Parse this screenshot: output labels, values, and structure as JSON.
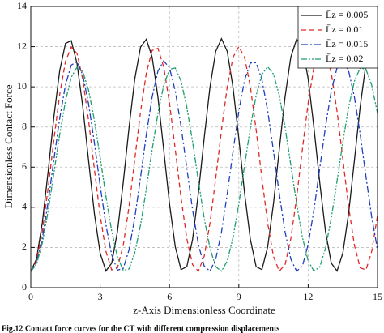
{
  "chart_data": {
    "type": "line",
    "x_label": "z-Axis Dimensionless Coordinate",
    "y_label": "Dimensionless Contact Force",
    "caption": "Fig.12  Contact force curves for the CT with different compression displacements",
    "xlim": [
      0,
      15
    ],
    "ylim": [
      0,
      14
    ],
    "xticks": [
      0,
      3,
      6,
      9,
      12,
      15
    ],
    "yticks": [
      0,
      2,
      4,
      6,
      8,
      10,
      12,
      14
    ],
    "grid": true,
    "legend": "top-right",
    "x": [
      0,
      0.25,
      0.5,
      0.75,
      1,
      1.25,
      1.5,
      1.75,
      2,
      2.25,
      2.5,
      2.75,
      3,
      3.25,
      3.5,
      3.75,
      4,
      4.25,
      4.5,
      4.75,
      5,
      5.25,
      5.5,
      5.75,
      6,
      6.25,
      6.5,
      6.75,
      7,
      7.25,
      7.5,
      7.75,
      8,
      8.25,
      8.5,
      8.75,
      9,
      9.25,
      9.5,
      9.75,
      10,
      10.25,
      10.5,
      10.75,
      11,
      11.25,
      11.5,
      11.75,
      12,
      12.25,
      12.5,
      12.75,
      13,
      13.25,
      13.5,
      13.75,
      14,
      14.25,
      14.5,
      14.75,
      15
    ],
    "series": [
      {
        "name": "L̄z = 0.005",
        "color": "#1a1a1a",
        "dash": "none",
        "values": [
          0.8,
          1.44,
          3.24,
          5.77,
          8.5,
          10.8,
          12.16,
          12.3,
          11.16,
          9.01,
          6.33,
          3.7,
          1.72,
          0.83,
          1.22,
          2.8,
          5.24,
          7.96,
          10.4,
          11.98,
          12.37,
          11.48,
          9.5,
          6.87,
          4.19,
          2.04,
          0.9,
          1.04,
          2.4,
          4.7,
          7.43,
          9.96,
          11.76,
          12.4,
          11.76,
          9.96,
          7.43,
          4.7,
          2.4,
          1.04,
          0.9,
          2.04,
          4.19,
          6.87,
          9.5,
          11.48,
          12.37,
          11.98,
          10.4,
          7.96,
          5.24,
          2.8,
          1.22,
          0.83,
          1.72,
          3.7,
          6.33,
          9.01,
          11.16,
          12.3,
          12.16
        ]
      },
      {
        "name": "L̄z = 0.01",
        "color": "#e02828",
        "dash": "6,4",
        "values": [
          0.8,
          1.33,
          2.8,
          4.95,
          7.37,
          9.61,
          11.25,
          11.98,
          11.66,
          10.36,
          8.32,
          5.91,
          3.6,
          1.81,
          0.88,
          0.99,
          2.11,
          4.03,
          6.4,
          8.77,
          10.69,
          11.81,
          11.92,
          10.99,
          9.2,
          6.89,
          4.48,
          2.44,
          1.14,
          0.82,
          1.55,
          3.19,
          5.43,
          7.85,
          10.0,
          11.47,
          12.0,
          11.47,
          10.0,
          7.85,
          5.43,
          3.19,
          1.55,
          0.82,
          1.14,
          2.44,
          4.48,
          6.89,
          9.2,
          10.99,
          11.92,
          11.81,
          10.69,
          8.77,
          6.4,
          4.03,
          2.11,
          0.99,
          0.88,
          1.81,
          3.6
        ]
      },
      {
        "name": "L̄z = 0.015",
        "color": "#1f3fbf",
        "dash": "8,3,2,3",
        "values": [
          0.8,
          1.23,
          2.45,
          4.26,
          6.37,
          8.42,
          10.09,
          11.08,
          11.26,
          10.58,
          9.15,
          7.22,
          5.09,
          3.12,
          1.63,
          0.87,
          0.96,
          1.88,
          3.48,
          5.51,
          7.63,
          9.49,
          10.78,
          11.29,
          10.95,
          9.8,
          8.04,
          5.95,
          3.87,
          2.15,
          1.08,
          0.82,
          1.41,
          2.77,
          4.67,
          6.79,
          8.79,
          10.34,
          11.19,
          11.2,
          10.35,
          8.8,
          6.8,
          4.68,
          2.78,
          1.42,
          0.82,
          1.07,
          2.15,
          3.87,
          5.93,
          8.02,
          9.79,
          10.95,
          11.29,
          10.79,
          9.49,
          7.64,
          5.53,
          3.5,
          1.89
        ]
      },
      {
        "name": "L̄z = 0.02",
        "color": "#1f9e6e",
        "dash": "7,2,2,2,2,2",
        "values": [
          0.8,
          1.17,
          2.22,
          3.81,
          5.71,
          7.62,
          9.29,
          10.47,
          10.98,
          10.76,
          9.84,
          8.34,
          6.49,
          4.55,
          2.81,
          1.52,
          0.86,
          0.93,
          1.73,
          3.13,
          4.93,
          6.87,
          8.67,
          10.07,
          10.87,
          10.94,
          10.29,
          8.99,
          7.26,
          5.32,
          3.47,
          1.97,
          1.04,
          0.82,
          1.33,
          2.5,
          4.17,
          6.09,
          7.98,
          9.57,
          10.63,
          11.0,
          10.63,
          9.58,
          7.99,
          6.1,
          4.18,
          2.51,
          1.33,
          0.82,
          1.03,
          1.96,
          3.46,
          5.31,
          7.25,
          8.99,
          10.28,
          10.94,
          10.87,
          10.08,
          8.68
        ]
      }
    ]
  }
}
